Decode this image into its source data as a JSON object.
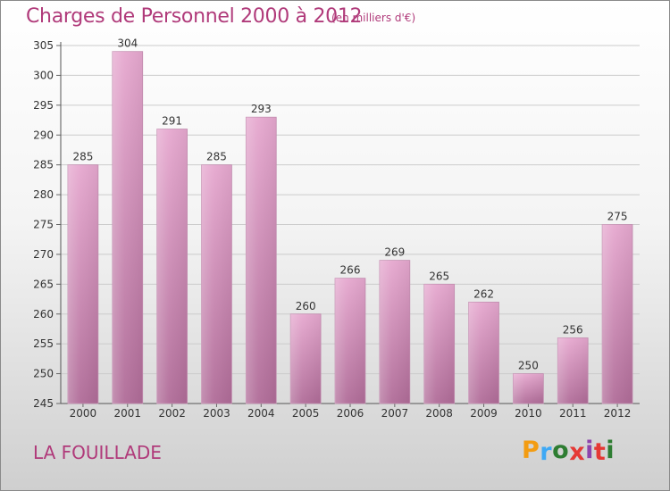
{
  "chart_data": {
    "type": "bar",
    "title": "Charges de Personnel 2000 à 2012",
    "subtitle": "(en milliers d'€)",
    "xlabel": "",
    "ylabel": "",
    "categories": [
      "2000",
      "2001",
      "2002",
      "2003",
      "2004",
      "2005",
      "2006",
      "2007",
      "2008",
      "2009",
      "2010",
      "2011",
      "2012"
    ],
    "values": [
      285,
      304,
      291,
      285,
      293,
      260,
      266,
      269,
      265,
      262,
      250,
      256,
      275
    ],
    "ylim": [
      245,
      305
    ],
    "yticks": [
      245,
      250,
      255,
      260,
      265,
      270,
      275,
      280,
      285,
      290,
      295,
      300,
      305
    ],
    "grid": true,
    "bar_color_top": "#e6a8cf",
    "bar_color_bottom": "#b06c98"
  },
  "commune": "LA FOUILLADE",
  "brand": {
    "letters": [
      "P",
      "r",
      "o",
      "x",
      "i",
      "t",
      "i"
    ],
    "colors": [
      "#f39c12",
      "#3fa9f5",
      "#2e7d32",
      "#e53935",
      "#8e44ad",
      "#e53935",
      "#2e7d32"
    ]
  }
}
